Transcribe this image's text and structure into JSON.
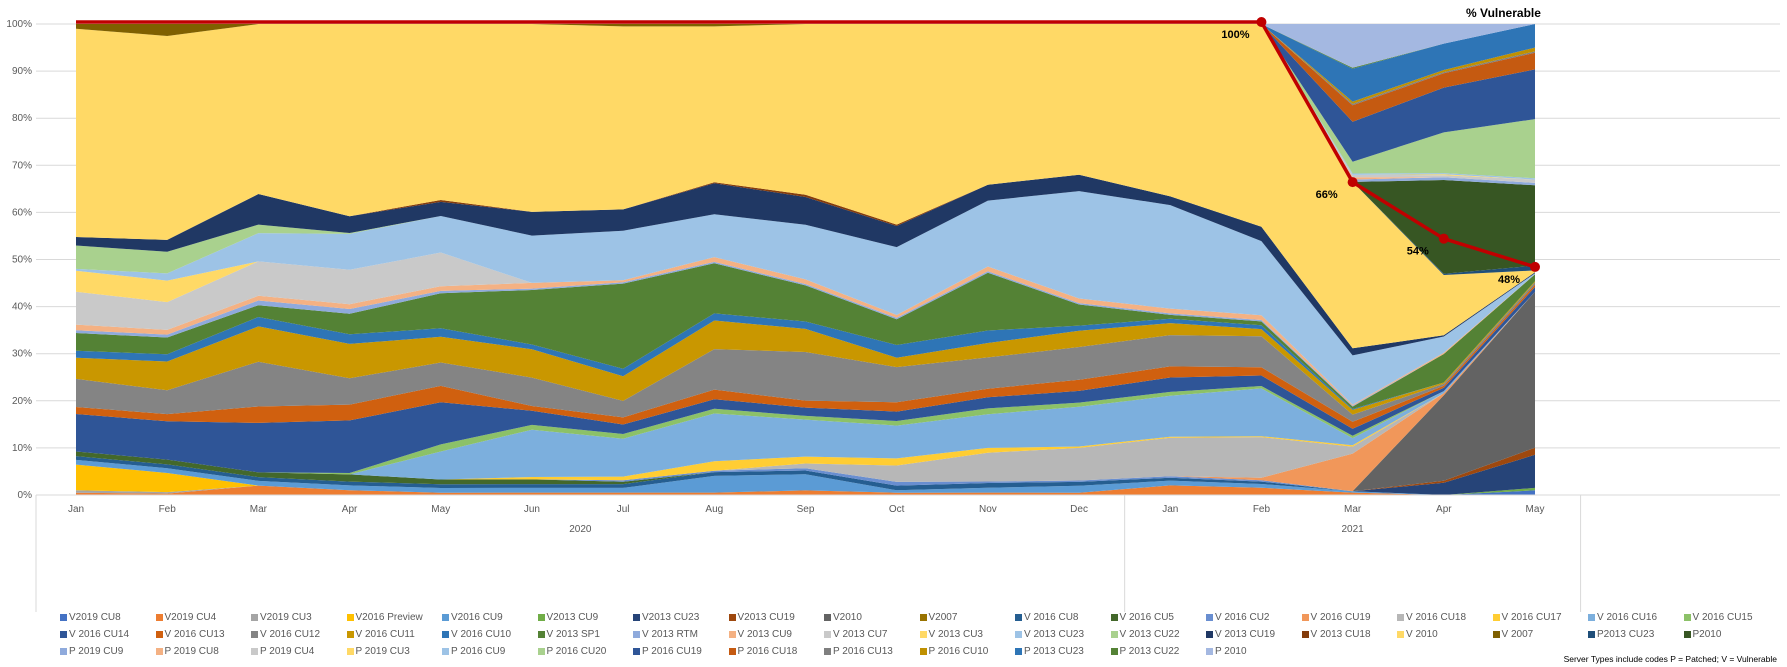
{
  "chart_data": {
    "type": "area",
    "stacked": "percent",
    "title": "",
    "line_series_title": "% Vulnerable",
    "ylim": [
      0,
      100
    ],
    "yticks": [
      "0%",
      "10%",
      "20%",
      "30%",
      "40%",
      "50%",
      "60%",
      "70%",
      "80%",
      "90%",
      "100%"
    ],
    "categories": [
      "Jan",
      "Feb",
      "Mar",
      "Apr",
      "May",
      "Jun",
      "Jul",
      "Aug",
      "Sep",
      "Oct",
      "Nov",
      "Dec",
      "Jan",
      "Feb",
      "Mar",
      "Apr",
      "May"
    ],
    "year_groups": [
      {
        "label": "2020",
        "count": 12
      },
      {
        "label": "2021",
        "count": 5
      }
    ],
    "grid": true,
    "legend_position": "bottom",
    "note": "Server Types include codes P = Patched; V = Vulnerable",
    "line_series": {
      "name": "% Vulnerable",
      "color": "#C00000",
      "values": [
        100,
        100,
        100,
        100,
        100,
        100,
        100,
        100,
        100,
        100,
        100,
        100,
        100,
        100,
        66,
        54,
        48
      ],
      "labels": [
        {
          "index": 13,
          "text": "100%"
        },
        {
          "index": 14,
          "text": "66%"
        },
        {
          "index": 15,
          "text": "54%"
        },
        {
          "index": 16,
          "text": "48%"
        }
      ]
    },
    "series": [
      {
        "name": "V2019 CU8",
        "color": "#4472C4",
        "values": [
          0,
          0,
          0,
          0,
          0,
          0,
          0,
          0,
          0,
          0,
          0,
          0,
          0,
          0,
          0,
          0,
          1
        ]
      },
      {
        "name": "V2019 CU4",
        "color": "#ED7D31",
        "values": [
          0.5,
          0.3,
          2,
          1,
          0.5,
          0.5,
          0.5,
          0.5,
          1,
          0.5,
          0.5,
          0.5,
          2,
          1.5,
          0.5,
          0,
          0
        ]
      },
      {
        "name": "V2019 CU3",
        "color": "#A5A5A5",
        "values": [
          0.5,
          0.3,
          0,
          0,
          0,
          0,
          0,
          0,
          0,
          0,
          0,
          0,
          0,
          0,
          0,
          0,
          0
        ]
      },
      {
        "name": "V2016 Preview",
        "color": "#FFC000",
        "values": [
          5.5,
          4,
          0,
          0,
          0,
          0,
          0,
          0,
          0,
          0,
          0,
          0,
          0,
          0,
          0,
          0,
          0
        ]
      },
      {
        "name": "V2016 CU9",
        "color": "#5B9BD5",
        "values": [
          1,
          1,
          1,
          1,
          1,
          1,
          1,
          3.5,
          3.5,
          0.5,
          1,
          1.5,
          1,
          0.8,
          0.3,
          0,
          0
        ]
      },
      {
        "name": "V2013 CU9",
        "color": "#70AD47",
        "values": [
          0,
          0,
          0,
          0,
          0,
          0,
          0,
          0,
          0,
          0,
          0,
          0,
          0,
          0,
          0,
          0,
          0.5
        ]
      },
      {
        "name": "V2013 CU23",
        "color": "#264478",
        "values": [
          0,
          0,
          0,
          0,
          0,
          0,
          0,
          0,
          0,
          0,
          0,
          0,
          0,
          0,
          0,
          3,
          7
        ]
      },
      {
        "name": "V2013 CU19",
        "color": "#9E480E",
        "values": [
          0,
          0,
          0,
          0,
          0,
          0,
          0,
          0,
          0,
          0,
          0,
          0,
          0,
          0,
          0,
          0.5,
          1.5
        ]
      },
      {
        "name": "V2010",
        "color": "#636363",
        "values": [
          0,
          0,
          0,
          0,
          0,
          0,
          0,
          0,
          0,
          0,
          0,
          0,
          0,
          0,
          0,
          21,
          33
        ]
      },
      {
        "name": "V2007",
        "color": "#997300",
        "values": [
          0,
          0,
          0,
          0,
          0,
          0,
          0,
          0,
          0,
          0,
          0,
          0,
          0,
          0,
          0,
          0,
          0
        ]
      },
      {
        "name": "V 2016 CU8",
        "color": "#255E91",
        "values": [
          0.8,
          0.8,
          0.8,
          0.8,
          0.8,
          0.8,
          0.8,
          0.8,
          0.8,
          1,
          1,
          0.8,
          0.6,
          0.5,
          0,
          0,
          0
        ]
      },
      {
        "name": "V 2016 CU5",
        "color": "#43682B",
        "values": [
          1,
          1,
          1,
          1.5,
          1,
          1,
          0.5,
          0,
          0,
          0,
          0,
          0,
          0,
          0,
          0,
          0,
          0
        ]
      },
      {
        "name": "V 2016 CU2",
        "color": "#698ED0",
        "values": [
          0,
          0,
          0,
          0,
          0,
          0,
          0.3,
          0.3,
          0.5,
          0.8,
          0.3,
          0.3,
          0.3,
          0.3,
          0,
          0,
          0
        ]
      },
      {
        "name": "V 2016 CU19",
        "color": "#F1975A",
        "values": [
          0,
          0,
          0,
          0,
          0,
          0,
          0,
          0,
          0,
          0,
          0,
          0,
          0,
          0.5,
          8,
          0.5,
          0
        ]
      },
      {
        "name": "V 2016 CU18",
        "color": "#B7B7B7",
        "values": [
          0,
          0,
          0,
          0,
          0,
          0,
          0,
          0,
          1,
          3.5,
          6,
          7,
          8,
          8.5,
          1.5,
          0,
          0
        ]
      },
      {
        "name": "V 2016 CU17",
        "color": "#FFCD33",
        "values": [
          0,
          0,
          0,
          0,
          0,
          0.5,
          0.8,
          2,
          1.5,
          1.5,
          1,
          0.3,
          0.2,
          0.2,
          0.3,
          0,
          0
        ]
      },
      {
        "name": "V 2016 CU16",
        "color": "#7CAFDD",
        "values": [
          0,
          0,
          0,
          0,
          6,
          10,
          8,
          10,
          8,
          7,
          7,
          8.5,
          8.5,
          10,
          1.5,
          0.5,
          0
        ]
      },
      {
        "name": "V 2016 CU15",
        "color": "#8CC168",
        "values": [
          0,
          0,
          0,
          0.3,
          1.5,
          1,
          1,
          1,
          0.8,
          1,
          1.2,
          0.9,
          0.8,
          0.5,
          0.5,
          0,
          0
        ]
      },
      {
        "name": "V 2016 CU14",
        "color": "#2F5597",
        "values": [
          8,
          8,
          10.5,
          11,
          9,
          3,
          2,
          2,
          1.8,
          2,
          2.3,
          2.5,
          3,
          2.2,
          1.5,
          0.8,
          1
        ]
      },
      {
        "name": "V 2016 CU13",
        "color": "#D0600F",
        "values": [
          1.5,
          1.5,
          3.5,
          3.3,
          3.5,
          1,
          1.5,
          2,
          1.5,
          2,
          1.8,
          2.4,
          2.3,
          1.7,
          1.5,
          0.5,
          0.5
        ]
      },
      {
        "name": "V 2016 CU12",
        "color": "#848484",
        "values": [
          6,
          5,
          9.5,
          5.5,
          5,
          6,
          3.5,
          8.5,
          10.5,
          7.5,
          6.5,
          7,
          6.5,
          6.5,
          1.5,
          0.5,
          0.5
        ]
      },
      {
        "name": "V 2016 CU11",
        "color": "#C99700",
        "values": [
          4.5,
          6,
          7.5,
          7.2,
          5.5,
          6,
          5.2,
          6,
          5,
          2,
          3,
          3.5,
          2.5,
          1.5,
          1,
          0.3,
          0.2
        ]
      },
      {
        "name": "V 2016 CU10",
        "color": "#2E75B6",
        "values": [
          1.5,
          1.5,
          2,
          2,
          1.8,
          1,
          1.6,
          1.5,
          1.6,
          2.7,
          2.6,
          1.1,
          0.9,
          0.8,
          0.2,
          0,
          0
        ]
      },
      {
        "name": "V 2013 SP1",
        "color": "#548235",
        "values": [
          3.8,
          3.5,
          2.5,
          4.3,
          7.5,
          11.5,
          18,
          10.5,
          7.8,
          5.5,
          12,
          4.5,
          0.8,
          0.8,
          0.5,
          7,
          1.5
        ]
      },
      {
        "name": "V 2013 RTM",
        "color": "#8FAADC",
        "values": [
          0.6,
          0.6,
          1,
          1,
          0.5,
          0.3,
          0.3,
          0.3,
          0.3,
          0.3,
          0.3,
          0.3,
          0.3,
          0.3,
          0.2,
          0,
          0
        ]
      },
      {
        "name": "V 2013 CU9",
        "color": "#F4B183",
        "values": [
          1.2,
          1,
          1,
          1,
          1,
          1.2,
          0.4,
          1,
          1,
          0.6,
          1,
          1,
          1,
          1,
          0.2,
          0.3,
          0
        ]
      },
      {
        "name": "V 2013 CU7",
        "color": "#C9C9C9",
        "values": [
          7,
          5.8,
          7.3,
          7.2,
          7.2,
          0,
          0,
          0,
          0,
          0,
          0,
          0,
          0,
          0,
          0,
          0,
          0
        ]
      },
      {
        "name": "V 2013 CU3",
        "color": "#FFD966",
        "values": [
          4.5,
          4.5,
          0,
          0,
          0,
          0,
          0,
          0,
          0,
          0,
          0,
          0,
          0,
          0,
          0,
          0,
          0
        ]
      },
      {
        "name": "V 2013 CU23",
        "color": "#9DC3E6",
        "values": [
          0.4,
          1.5,
          6,
          7.5,
          7.8,
          10,
          10.5,
          9,
          11.8,
          14.5,
          13.7,
          23,
          21.5,
          15.5,
          10.5,
          4,
          0.2
        ]
      },
      {
        "name": "V 2013 CU22",
        "color": "#A9D18E",
        "values": [
          5,
          4.5,
          1.8,
          0.2,
          0,
          0,
          0,
          0,
          0,
          0,
          0,
          0,
          0,
          0,
          0,
          0,
          0
        ]
      },
      {
        "name": "V 2013 CU19",
        "color": "#203864",
        "values": [
          1.8,
          2.5,
          6.5,
          3.5,
          3,
          5,
          4.5,
          6.5,
          6,
          4.5,
          3.3,
          3.5,
          1.8,
          3,
          1.5,
          0.3,
          0.2
        ]
      },
      {
        "name": "V 2013 CU18",
        "color": "#843C0C",
        "values": [
          0,
          0,
          0,
          0,
          0.4,
          0,
          0,
          0.2,
          0.5,
          0.3,
          0,
          0,
          0,
          0,
          0,
          0,
          0
        ]
      },
      {
        "name": "V 2010",
        "color": "#FFD966",
        "values": [
          44.5,
          42.6,
          36.1,
          40.2,
          37.6,
          39.7,
          38.7,
          32.7,
          36.9,
          42.8,
          33.4,
          32.3,
          35.8,
          42.4,
          35.4,
          14.8,
          0.4
        ]
      },
      {
        "name": "V 2007",
        "color": "#7F6000",
        "values": [
          1,
          2.5,
          0,
          0,
          0,
          0,
          0.5,
          0.5,
          0,
          0,
          0,
          0,
          0,
          0,
          0,
          0,
          0
        ]
      },
      {
        "name": "P2013 CU23",
        "color": "#1F4E79",
        "values": [
          0,
          0,
          0,
          0,
          0,
          0,
          0,
          0,
          0,
          0,
          0,
          0,
          0,
          0,
          0,
          0.3,
          1
        ]
      },
      {
        "name": "P2010",
        "color": "#375623",
        "values": [
          0,
          0,
          0,
          0,
          0,
          0,
          0,
          0,
          0,
          0,
          0,
          0,
          0,
          0,
          0,
          23,
          17
        ]
      },
      {
        "name": "P 2019 CU9",
        "color": "#8FAADC",
        "values": [
          0,
          0,
          0,
          0,
          0,
          0,
          0,
          0,
          0,
          0,
          0,
          0,
          0,
          0,
          0.5,
          0.7,
          0.5
        ]
      },
      {
        "name": "P 2019 CU8",
        "color": "#F4B183",
        "values": [
          0,
          0,
          0,
          0,
          0,
          0,
          0,
          0,
          0,
          0,
          0,
          0,
          0,
          0,
          0.5,
          0,
          0
        ]
      },
      {
        "name": "P 2019 CU4",
        "color": "#C9C9C9",
        "values": [
          0,
          0,
          0,
          0,
          0,
          0,
          0,
          0,
          0,
          0,
          0,
          0,
          0,
          0,
          0.5,
          0.5,
          0.7
        ]
      },
      {
        "name": "P 2019 CU3",
        "color": "#FFD966",
        "values": [
          0,
          0,
          0,
          0,
          0,
          0,
          0,
          0,
          0,
          0,
          0,
          0,
          0,
          0,
          0,
          0.2,
          0
        ]
      },
      {
        "name": "P 2016 CU9",
        "color": "#9DC3E6",
        "values": [
          0,
          0,
          0,
          0,
          0,
          0,
          0,
          0,
          0,
          0,
          0,
          0,
          0,
          0,
          0.3,
          0.3,
          0.3
        ]
      },
      {
        "name": "P 2016 CU20",
        "color": "#A9D18E",
        "values": [
          0,
          0,
          0,
          0,
          0,
          0,
          0,
          0,
          0,
          0,
          0,
          0,
          0,
          0,
          2.5,
          10,
          12.5
        ]
      },
      {
        "name": "P 2016 CU19",
        "color": "#2F5597",
        "values": [
          0,
          0,
          0,
          0,
          0,
          0,
          0,
          0,
          0,
          0,
          0,
          0,
          0,
          0,
          8.5,
          11,
          10.5
        ]
      },
      {
        "name": "P 2016 CU18",
        "color": "#C55A11",
        "values": [
          0,
          0,
          0,
          0,
          0,
          0,
          0,
          0,
          0,
          0,
          0,
          0,
          0,
          0,
          3.5,
          3.5,
          3.5
        ]
      },
      {
        "name": "P 2016 CU13",
        "color": "#7F7F7F",
        "values": [
          0,
          0,
          0,
          0,
          0,
          0,
          0,
          0,
          0,
          0,
          0,
          0,
          0,
          0,
          0.3,
          0.3,
          0.3
        ]
      },
      {
        "name": "P 2016 CU10",
        "color": "#BF9000",
        "values": [
          0,
          0,
          0,
          0,
          0,
          0,
          0,
          0,
          0,
          0,
          0,
          0,
          0,
          0,
          0.5,
          0.5,
          0.8
        ]
      },
      {
        "name": "P 2013 CU23",
        "color": "#2E75B6",
        "values": [
          0,
          0,
          0,
          0,
          0,
          0,
          0,
          0,
          0,
          0,
          0,
          0,
          0,
          0,
          7,
          6.5,
          5
        ]
      },
      {
        "name": "P 2013 CU22",
        "color": "#548235",
        "values": [
          0,
          0,
          0,
          0,
          0,
          0,
          0,
          0,
          0,
          0,
          0,
          0,
          0,
          0,
          0.2,
          0,
          0
        ]
      },
      {
        "name": "P 2010",
        "color": "#A4B8E1",
        "values": [
          0,
          0,
          0,
          0,
          0,
          0,
          0,
          0,
          0,
          0,
          0,
          0,
          0,
          0,
          9.3,
          4.8,
          0
        ]
      }
    ]
  }
}
